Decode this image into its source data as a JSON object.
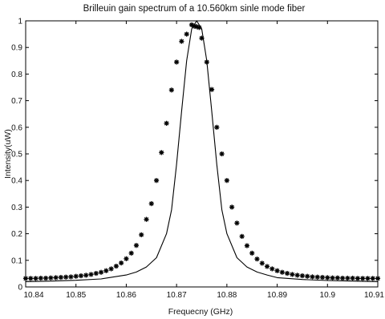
{
  "chart_data": {
    "type": "line",
    "title": "Brilleuin gain spectrum of a 10.560km sinle mode fiber",
    "xlabel": "Frequecny  (GHz)",
    "ylabel": "Intensity(uW)",
    "xlim": [
      10.84,
      10.91
    ],
    "ylim": [
      0,
      1
    ],
    "xticks": [
      "10.84",
      "10.85",
      "10.86",
      "10.87",
      "10.88",
      "10.89",
      "10.9",
      "10.91"
    ],
    "yticks": [
      "0",
      "0.1",
      "0.2",
      "0.3",
      "0.4",
      "0.5",
      "0.6",
      "0.7",
      "0.8",
      "0.9",
      "1"
    ],
    "grid": false,
    "legend": "none",
    "series": [
      {
        "style": "solid-line",
        "color": "#000000",
        "x": [
          10.84,
          10.845,
          10.85,
          10.855,
          10.86,
          10.862,
          10.864,
          10.866,
          10.868,
          10.869,
          10.87,
          10.871,
          10.872,
          10.873,
          10.874,
          10.875,
          10.876,
          10.877,
          10.878,
          10.879,
          10.88,
          10.882,
          10.884,
          10.886,
          10.888,
          10.89,
          10.895,
          10.9,
          10.905,
          10.91
        ],
        "y": [
          0.02,
          0.022,
          0.025,
          0.03,
          0.045,
          0.056,
          0.075,
          0.11,
          0.2,
          0.29,
          0.46,
          0.66,
          0.85,
          0.97,
          1.0,
          0.97,
          0.85,
          0.66,
          0.46,
          0.29,
          0.2,
          0.11,
          0.075,
          0.056,
          0.045,
          0.035,
          0.028,
          0.024,
          0.022,
          0.02
        ]
      },
      {
        "style": "star-markers",
        "color": "#000000",
        "x": [
          10.84,
          10.841,
          10.842,
          10.843,
          10.844,
          10.845,
          10.846,
          10.847,
          10.848,
          10.849,
          10.85,
          10.851,
          10.852,
          10.853,
          10.854,
          10.855,
          10.856,
          10.857,
          10.858,
          10.859,
          10.86,
          10.861,
          10.862,
          10.863,
          10.864,
          10.865,
          10.866,
          10.867,
          10.868,
          10.869,
          10.87,
          10.871,
          10.872,
          10.873,
          10.8735,
          10.874,
          10.8745,
          10.875,
          10.876,
          10.877,
          10.878,
          10.879,
          10.88,
          10.881,
          10.882,
          10.883,
          10.884,
          10.885,
          10.886,
          10.887,
          10.888,
          10.889,
          10.89,
          10.891,
          10.892,
          10.893,
          10.894,
          10.895,
          10.896,
          10.897,
          10.898,
          10.899,
          10.9,
          10.901,
          10.902,
          10.903,
          10.904,
          10.905,
          10.906,
          10.907,
          10.908,
          10.909,
          10.91
        ],
        "y": [
          0.032,
          0.032,
          0.032,
          0.033,
          0.033,
          0.034,
          0.035,
          0.036,
          0.037,
          0.038,
          0.04,
          0.042,
          0.044,
          0.047,
          0.051,
          0.055,
          0.061,
          0.068,
          0.078,
          0.09,
          0.106,
          0.127,
          0.156,
          0.196,
          0.254,
          0.313,
          0.4,
          0.505,
          0.615,
          0.74,
          0.845,
          0.923,
          0.95,
          0.985,
          0.98,
          0.978,
          0.975,
          0.935,
          0.845,
          0.742,
          0.6,
          0.5,
          0.4,
          0.3,
          0.24,
          0.19,
          0.155,
          0.127,
          0.105,
          0.089,
          0.077,
          0.068,
          0.061,
          0.055,
          0.051,
          0.047,
          0.044,
          0.042,
          0.04,
          0.038,
          0.037,
          0.036,
          0.035,
          0.034,
          0.034,
          0.033,
          0.033,
          0.033,
          0.032,
          0.032,
          0.032,
          0.032,
          0.032
        ]
      }
    ]
  }
}
